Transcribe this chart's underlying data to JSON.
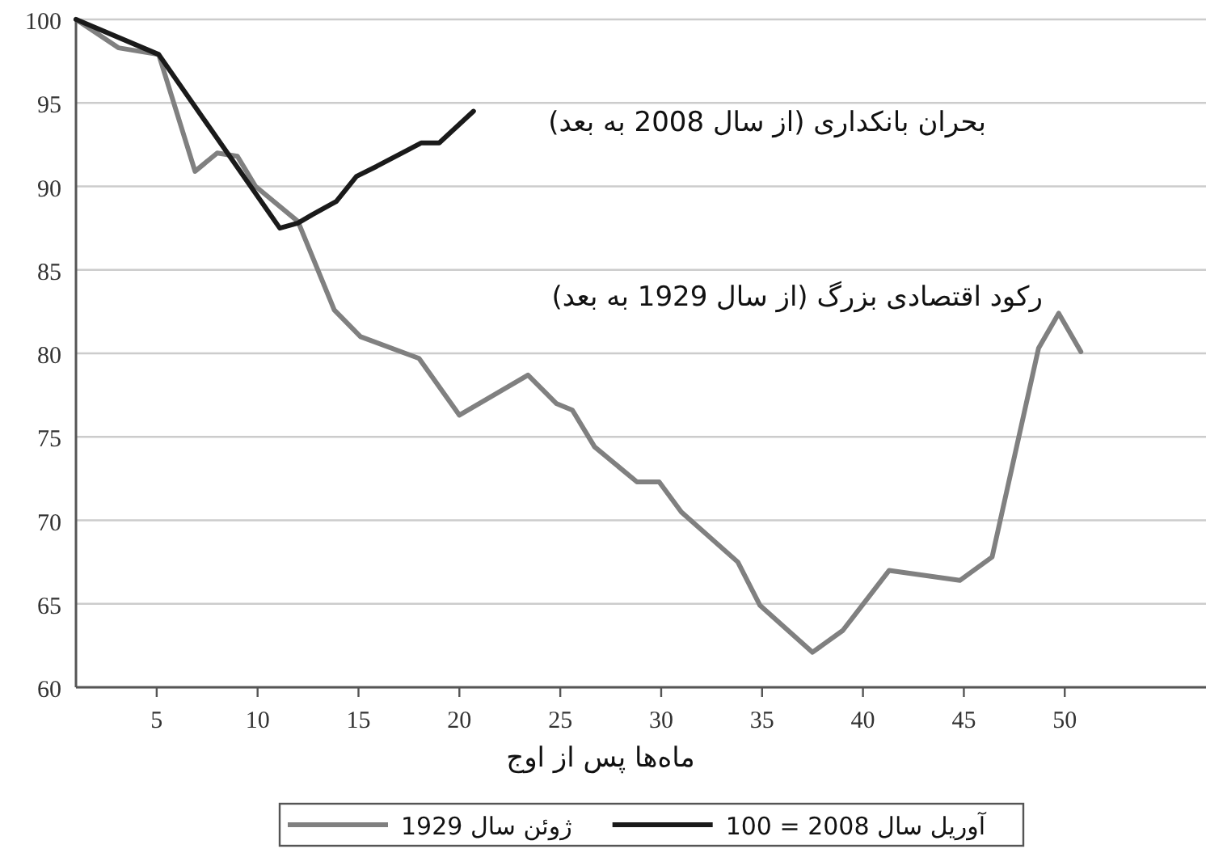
{
  "chart_data": {
    "type": "line",
    "xlabel": "ماه‌ها پس از اوج",
    "xlim": [
      1,
      57
    ],
    "xticks": [
      5,
      10,
      15,
      20,
      25,
      30,
      35,
      40,
      45,
      50
    ],
    "ylim": [
      60,
      100
    ],
    "yticks": [
      60,
      65,
      70,
      75,
      80,
      85,
      90,
      95,
      100
    ],
    "grid": "y",
    "legend": "bottom",
    "line_style": "solid",
    "marker": "none",
    "series": [
      {
        "name": "ژوئن سال 1929",
        "color": "#808080",
        "x": [
          1,
          3.1,
          5.1,
          6.9,
          8.0,
          9.0,
          9.9,
          12.0,
          13.8,
          15.1,
          18.0,
          20.0,
          23.4,
          24.8,
          25.6,
          26.7,
          28.8,
          29.9,
          31.0,
          33.8,
          34.9,
          37.5,
          39.0,
          41.3,
          44.8,
          46.4,
          48.7,
          49.7,
          50.8
        ],
        "values": [
          100,
          98.3,
          97.9,
          90.9,
          92.0,
          91.8,
          90.0,
          87.9,
          82.6,
          81.0,
          79.7,
          76.3,
          78.7,
          77.0,
          76.6,
          74.4,
          72.3,
          72.3,
          70.5,
          67.5,
          64.9,
          62.1,
          63.4,
          67.0,
          66.4,
          67.8,
          80.3,
          82.4,
          80.1
        ]
      },
      {
        "name": "آوریل سال 2008 = 100",
        "color": "#1a1a1a",
        "x": [
          1,
          5.1,
          11.1,
          12.0,
          12.7,
          13.9,
          14.9,
          15.9,
          18.1,
          19.0,
          20.7
        ],
        "values": [
          100,
          97.9,
          87.5,
          87.8,
          88.3,
          89.1,
          90.6,
          91.2,
          92.6,
          92.6,
          94.5
        ]
      }
    ],
    "annotations": [
      "بحران بانکداری (از سال 2008 به بعد)",
      "رکود اقتصادی بزرگ (از سال 1929 به بعد)"
    ]
  }
}
